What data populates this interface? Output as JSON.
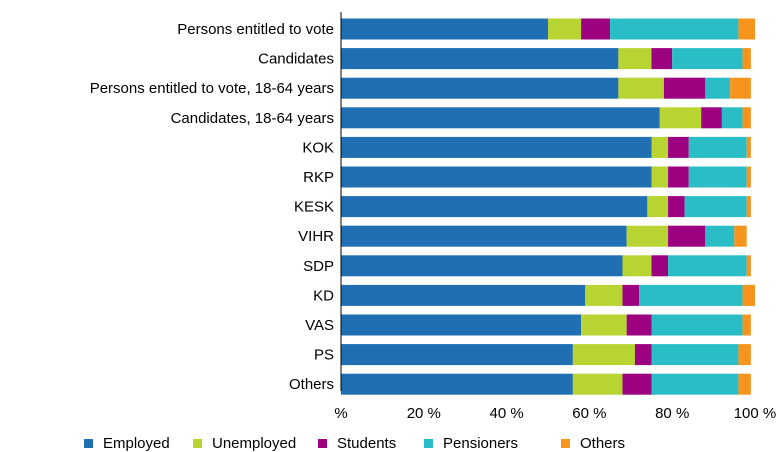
{
  "chart_data": {
    "type": "bar",
    "orientation": "horizontal",
    "stacked": true,
    "categories": [
      "Persons entitled to vote",
      "Candidates",
      "Persons entitled to vote, 18-64 years",
      "Candidates, 18-64 years",
      "KOK",
      "RKP",
      "KESK",
      "VIHR",
      "SDP",
      "KD",
      "VAS",
      "PS",
      "Others"
    ],
    "series": [
      {
        "name": "Employed",
        "color": "#1f6fb2",
        "values": [
          50,
          67,
          67,
          77,
          75,
          75,
          74,
          69,
          68,
          59,
          58,
          56,
          56
        ]
      },
      {
        "name": "Unemployed",
        "color": "#b7d433",
        "values": [
          8,
          8,
          11,
          10,
          4,
          4,
          5,
          10,
          7,
          9,
          11,
          15,
          12
        ]
      },
      {
        "name": "Students",
        "color": "#9c027f",
        "values": [
          7,
          5,
          10,
          5,
          5,
          5,
          4,
          9,
          4,
          4,
          6,
          4,
          7
        ]
      },
      {
        "name": "Pensioners",
        "color": "#2bbdc6",
        "values": [
          31,
          17,
          6,
          5,
          14,
          14,
          15,
          7,
          19,
          25,
          22,
          21,
          21
        ]
      },
      {
        "name": "Others",
        "color": "#f7941d",
        "values": [
          4,
          2,
          5,
          2,
          1,
          1,
          1,
          3,
          1,
          3,
          2,
          3,
          3
        ]
      }
    ],
    "xaxis": {
      "range": [
        0,
        100
      ],
      "ticks": [
        0,
        20,
        40,
        60,
        80,
        100
      ],
      "tick_labels": [
        "%",
        "20 %",
        "40 %",
        "60 %",
        "80 %",
        "100 %"
      ]
    },
    "legend_position": "bottom",
    "grid": false,
    "title": "",
    "xlabel": "",
    "ylabel": ""
  }
}
